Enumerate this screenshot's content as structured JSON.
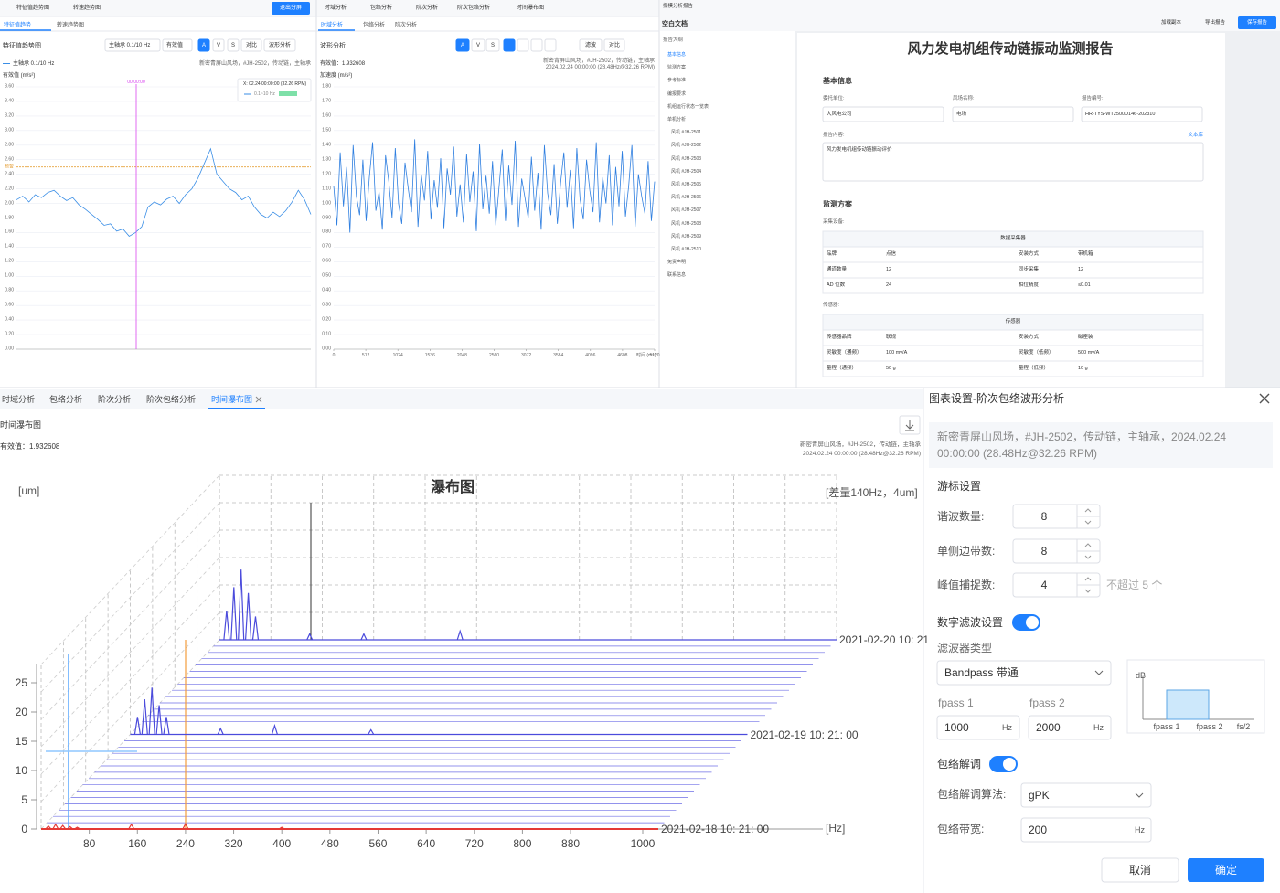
{
  "top_left": {
    "toolbar": [
      "特征值趋势图",
      "转速趋势图"
    ],
    "exit_button": "退出分屏",
    "tabs": [
      "特征值趋势",
      "转速趋势图"
    ],
    "title": "特征值趋势图",
    "select_channel": "主轴承 0.1/10 Hz",
    "select_value": "有效值",
    "buttons": [
      "A",
      "V",
      "S",
      "对比",
      "波形分析"
    ],
    "legend": "主轴承 0.1/10 Hz",
    "info": "新密青屏山风场，#JH-2502，传动链，主轴承",
    "unit": "有效值 (m/s²)",
    "cursor_label": "00:00:00",
    "tooltip": {
      "time": "X: 02.24 00:00:00 (32.26 RPM)",
      "name": "0.1~10 Hz"
    },
    "chart": {
      "type": "line",
      "color": "#3a8ee6",
      "ylim": [
        0,
        3.6
      ],
      "yticks": [
        {
          "value": 0,
          "label": "0.00"
        },
        {
          "value": 0.2,
          "label": "0.20"
        },
        {
          "value": 0.4,
          "label": "0.40"
        },
        {
          "value": 0.6,
          "label": "0.60"
        },
        {
          "value": 0.8,
          "label": "0.80"
        },
        {
          "value": 1,
          "label": "1.00"
        },
        {
          "value": 1.2,
          "label": "1.20"
        },
        {
          "value": 1.4,
          "label": "1.40"
        },
        {
          "value": 1.6,
          "label": "1.60"
        },
        {
          "value": 1.8,
          "label": "1.80"
        },
        {
          "value": 2,
          "label": "2.00"
        },
        {
          "value": 2.2,
          "label": "2.20"
        },
        {
          "value": 2.4,
          "label": "2.40"
        },
        {
          "value": 2.6,
          "label": "2.60"
        },
        {
          "value": 2.8,
          "label": "2.80"
        },
        {
          "value": 3,
          "label": "3.00"
        },
        {
          "value": 3.2,
          "label": "3.20"
        },
        {
          "value": 3.4,
          "label": "3.40"
        },
        {
          "value": 3.6,
          "label": "3.60"
        }
      ],
      "values": [
        2.05,
        2.1,
        2.02,
        2.12,
        2.08,
        2.15,
        2.18,
        2.1,
        2.04,
        2.08,
        1.98,
        1.92,
        1.85,
        1.78,
        1.7,
        1.72,
        1.62,
        1.65,
        1.55,
        1.6,
        1.68,
        1.95,
        2.02,
        1.98,
        2.06,
        2.1,
        2.0,
        2.12,
        2.2,
        2.35,
        2.55,
        2.75,
        2.4,
        2.3,
        2.2,
        2.15,
        2.05,
        2.1,
        1.95,
        1.85,
        1.8,
        1.88,
        1.82,
        1.9,
        2.02,
        2.18,
        2.05,
        1.85
      ],
      "alarm": {
        "value": 2.5,
        "label": "预警",
        "color": "#e6a23c"
      },
      "cursor_color": "#d946ef"
    }
  },
  "top_middle": {
    "toolbar": [
      "时域分析",
      "包络分析",
      "阶次分析",
      "阶次包络分析",
      "时间瀑布图"
    ],
    "tabs": [
      "时域分析",
      "包络分析",
      "阶次分析"
    ],
    "title": "波形分析",
    "buttons": [
      "A",
      "V",
      "S",
      "滤波",
      "对比"
    ],
    "rms": "有效值：1.932608",
    "info": [
      "新密青屏山风场，#JH-2502，传动链，主轴承",
      "2024.02.24 00:00:00 (28.48Hz@32.26 RPM)"
    ],
    "unit": "加速度 (m/s²)",
    "chart": {
      "type": "line",
      "color": "#2f7fe0",
      "ylim": [
        0,
        1.8
      ],
      "yticks": [
        {
          "value": 0,
          "label": "0.00"
        },
        {
          "value": 0.1,
          "label": "0.10"
        },
        {
          "value": 0.2,
          "label": "0.20"
        },
        {
          "value": 0.3,
          "label": "0.30"
        },
        {
          "value": 0.4,
          "label": "0.40"
        },
        {
          "value": 0.5,
          "label": "0.50"
        },
        {
          "value": 0.6,
          "label": "0.60"
        },
        {
          "value": 0.7,
          "label": "0.70"
        },
        {
          "value": 0.8,
          "label": "0.80"
        },
        {
          "value": 0.9,
          "label": "0.90"
        },
        {
          "value": 1,
          "label": "1.00"
        },
        {
          "value": 1.1,
          "label": "1.10"
        },
        {
          "value": 1.2,
          "label": "1.20"
        },
        {
          "value": 1.3,
          "label": "1.30"
        },
        {
          "value": 1.4,
          "label": "1.40"
        },
        {
          "value": 1.5,
          "label": "1.50"
        },
        {
          "value": 1.6,
          "label": "1.60"
        },
        {
          "value": 1.7,
          "label": "1.70"
        },
        {
          "value": 1.8,
          "label": "1.80"
        }
      ],
      "xlim": [
        0,
        5120
      ],
      "xticks": [
        0,
        512,
        1024,
        1536,
        2048,
        2560,
        3072,
        3584,
        4096,
        4608,
        5120
      ],
      "x_label": "时间 (ms)",
      "values": [
        1.12,
        0.85,
        1.35,
        0.98,
        1.25,
        0.8,
        1.4,
        1.05,
        0.92,
        1.3,
        0.88,
        1.18,
        1.42,
        0.95,
        1.08,
        0.82,
        1.33,
        1.15,
        0.9,
        1.38,
        1.0,
        0.86,
        1.28,
        1.1,
        0.94,
        1.44,
        0.84,
        1.2,
        1.02,
        1.36,
        0.89,
        1.16,
        0.97,
        1.31,
        0.83,
        1.24,
        1.06,
        1.39,
        0.91,
        1.13,
        0.87,
        1.34,
        1.01,
        1.22,
        0.81,
        1.41,
        0.96,
        1.19,
        0.93,
        1.29,
        0.85,
        1.11,
        1.37,
        0.88,
        1.26,
        0.99,
        1.43,
        0.84,
        1.17,
        1.04,
        0.9,
        1.32,
        0.95,
        1.21,
        0.82,
        1.4,
        1.07,
        0.92,
        1.27,
        0.86,
        1.14,
        1.35,
        0.97,
        1.23,
        0.83,
        1.38,
        1.03,
        0.89,
        1.3,
        1.09,
        0.94,
        1.42,
        0.87,
        1.18,
        1.0,
        1.33,
        0.85,
        1.25,
        0.98,
        1.36,
        0.91,
        1.12,
        1.4,
        0.84,
        1.2,
        1.05,
        0.93,
        1.29,
        0.88,
        1.15
      ]
    }
  },
  "report": {
    "window_title": "振模分析报告",
    "tab": "空白文档",
    "actions": [
      "加载副本",
      "导出报告"
    ],
    "save_button": "保存报告",
    "outline_title": "报告大纲",
    "outline": [
      "基本信息",
      "监测方案",
      "参考标准",
      "编报要求",
      "机组运行状态一览表",
      "单机分析",
      "风机 #JH-2501",
      "风机 #JH-2502",
      "风机 #JH-2503",
      "风机 #JH-2504",
      "风机 #JH-2505",
      "风机 #JH-2506",
      "风机 #JH-2507",
      "风机 #JH-2508",
      "风机 #JH-2509",
      "风机 #JH-2510",
      "免责声明",
      "联系信息"
    ],
    "doc_title": "风力发电机组传动链振动监测报告",
    "basic_title": "基本信息",
    "fields": [
      {
        "label": "委托单位:",
        "value": "大风电公司"
      },
      {
        "label": "风场名称:",
        "value": "电场"
      },
      {
        "label": "报告编号:",
        "value": "HR-TYS-WT2500D146-202310"
      }
    ],
    "content_label": "报告内容:",
    "library": "文本库",
    "content": "风力发电机组传动链振动评价",
    "plan_title": "监测方案",
    "acq_label": "采集设备:",
    "acq_table": {
      "header": "数据采集器",
      "rows": [
        [
          "品牌",
          "点信",
          "安装方式",
          "带机箱"
        ],
        [
          "通道数量",
          "12",
          "同步采集",
          "12"
        ],
        [
          "AD 位数",
          "24",
          "相位精度",
          "≤0.01"
        ]
      ]
    },
    "sensor_label": "传感器:",
    "sensor_table": {
      "header": "传感器",
      "rows": [
        [
          "传感器品牌",
          "联规",
          "安装方式",
          "磁座装"
        ],
        [
          "灵敏度（通频）",
          "100 mv/A",
          "灵敏度（低频）",
          "500 mv/A"
        ],
        [
          "量程（通频）",
          "50 g",
          "量程（低频）",
          "10 g"
        ]
      ]
    }
  },
  "waterfall": {
    "tabs": [
      "时域分析",
      "包络分析",
      "阶次分析",
      "阶次包络分析",
      "时间瀑布图"
    ],
    "title": "时间瀑布图",
    "rms": "有效值：1.932608",
    "info": [
      "新密青屏山风场，#JH-2502，传动链，主轴承",
      "2024.02.24 00:00:00 (28.48Hz@32.26 RPM)"
    ],
    "chart": {
      "type": "waterfall",
      "title": "瀑布图",
      "y_label": "[um]",
      "x_label": "[Hz]",
      "note": "[差量140Hz，4um]",
      "xlim": [
        0,
        1000
      ],
      "xticks": [
        80,
        160,
        240,
        320,
        400,
        480,
        560,
        640,
        720,
        800,
        880,
        1000
      ],
      "ylim": [
        0,
        25
      ],
      "yticks": [
        0,
        5,
        10,
        15,
        20,
        25
      ],
      "x": [
        12,
        24,
        36,
        48,
        60,
        150,
        240,
        400
      ],
      "series": [
        {
          "name": "2021-02-18  10: 21: 00",
          "color": "#e53935",
          "values": [
            0.5,
            0.8,
            0.6,
            0.4,
            0.3,
            0.8,
            0.9,
            0.3
          ]
        },
        {
          "name": "2021-02-19  10: 21: 00",
          "color": "#4b4bdc",
          "values": [
            3,
            6,
            8,
            5,
            3,
            1,
            1.5,
            0.8
          ]
        },
        {
          "name": "2021-02-20  10: 21",
          "color": "#4b4bdc",
          "values": [
            5,
            9,
            12,
            8,
            4,
            1,
            1,
            1.5
          ]
        }
      ]
    }
  },
  "dialog": {
    "title": "图表设置-阶次包络波形分析",
    "info": "新密青屏山风场，#JH-2502，传动链，主轴承，2024.02.24 00:00:00 (28.48Hz@32.26 RPM)",
    "cursor_title": "游标设置",
    "harmonics": {
      "label": "谐波数量:",
      "value": 8
    },
    "sidebands": {
      "label": "单侧边带数:",
      "value": 8
    },
    "peaks": {
      "label": "峰值捕捉数:",
      "value": 4,
      "hint": "不超过 5 个"
    },
    "filter_title": "数字滤波设置",
    "filter_type_label": "滤波器类型",
    "filter_type": "Bandpass 带通",
    "fpass1": {
      "label": "fpass 1",
      "value": 1000,
      "unit": "Hz"
    },
    "fpass2": {
      "label": "fpass 2",
      "value": 2000,
      "unit": "Hz"
    },
    "diagram": {
      "y": "dB",
      "f1": "fpass 1",
      "f2": "fpass 2",
      "fs": "fs/2"
    },
    "envelope_title": "包络解调",
    "algorithm": {
      "label": "包络解调算法:",
      "value": "gPK"
    },
    "bandwidth": {
      "label": "包络带宽:",
      "value": 200,
      "unit": "Hz"
    },
    "cancel": "取消",
    "ok": "确定"
  }
}
